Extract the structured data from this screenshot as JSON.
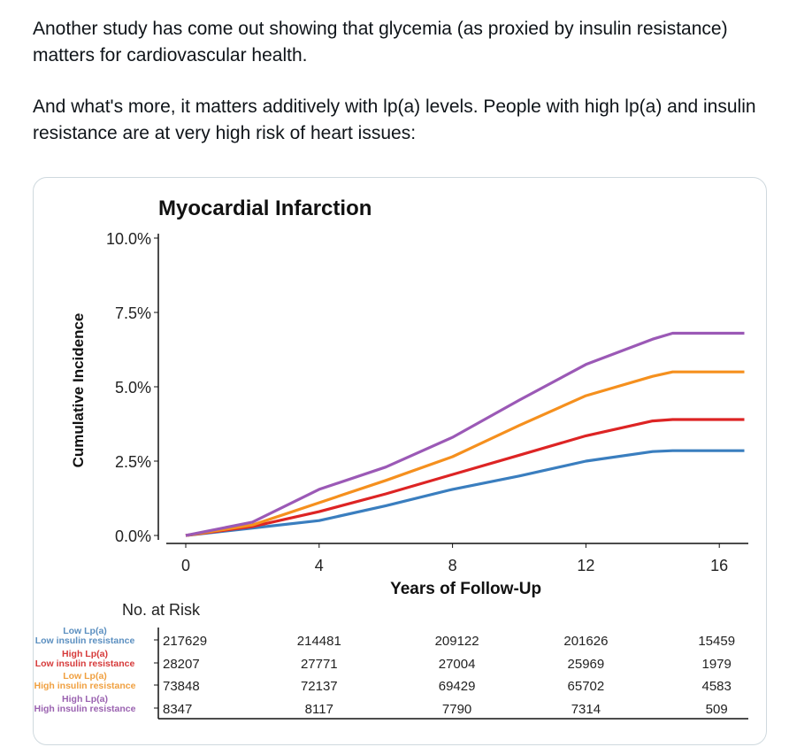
{
  "post": {
    "paragraphs": [
      "Another study has come out showing that glycemia (as proxied by insulin resistance) matters for cardiovascular health.",
      "And what's more, it matters additively with lp(a) levels. People with high lp(a) and insulin resistance are at very high risk of heart issues:"
    ]
  },
  "chart_data": {
    "type": "line",
    "title": "Myocardial Infarction",
    "xlabel": "Years of Follow-Up",
    "ylabel": "Cumulative Incidence",
    "xlim": [
      0,
      16.8
    ],
    "ylim": [
      0,
      10
    ],
    "xticks": [
      "0",
      "4",
      "8",
      "12",
      "16"
    ],
    "xtick_values": [
      0,
      4,
      8,
      12,
      16
    ],
    "yticks": [
      "0.0%",
      "2.5%",
      "5.0%",
      "7.5%",
      "10.0%"
    ],
    "ytick_values": [
      0,
      2.5,
      5,
      7.5,
      10
    ],
    "grid": false,
    "series": [
      {
        "name": "Low Lp(a) Low insulin resistance",
        "color": "#3a7ebf",
        "x": [
          0,
          2,
          4,
          6,
          8,
          10,
          12,
          14,
          14.6,
          16.75
        ],
        "y": [
          0,
          0.25,
          0.5,
          1.0,
          1.55,
          2.0,
          2.5,
          2.82,
          2.85,
          2.85
        ]
      },
      {
        "name": "High Lp(a) Low insulin resistance",
        "color": "#dd2424",
        "x": [
          0,
          2,
          4,
          6,
          8,
          10,
          12,
          14,
          14.6,
          16.75
        ],
        "y": [
          0,
          0.3,
          0.8,
          1.4,
          2.05,
          2.7,
          3.35,
          3.85,
          3.9,
          3.9
        ]
      },
      {
        "name": "Low Lp(a) High insulin resistance",
        "color": "#f5901e",
        "x": [
          0,
          2,
          4,
          6,
          8,
          10,
          12,
          14,
          14.6,
          16.75
        ],
        "y": [
          0,
          0.35,
          1.1,
          1.85,
          2.65,
          3.7,
          4.7,
          5.35,
          5.5,
          5.5
        ]
      },
      {
        "name": "High Lp(a) High insulin resistance",
        "color": "#9b59b6",
        "x": [
          0,
          2,
          4,
          6,
          8,
          10,
          12,
          14,
          14.6,
          16.75
        ],
        "y": [
          0,
          0.45,
          1.55,
          2.3,
          3.3,
          4.55,
          5.75,
          6.6,
          6.8,
          6.8
        ]
      }
    ],
    "risk_table": {
      "title": "No. at Risk",
      "rows": [
        {
          "line1": "Low Lp(a)",
          "line2": "Low insulin resistance",
          "color": "#5b8fc0",
          "values": [
            "217629",
            "214481",
            "209122",
            "201626",
            "15459"
          ]
        },
        {
          "line1": "High Lp(a)",
          "line2": "Low insulin resistance",
          "color": "#d63a3a",
          "values": [
            "28207",
            "27771",
            "27004",
            "25969",
            "1979"
          ]
        },
        {
          "line1": "Low Lp(a)",
          "line2": "High insulin resistance",
          "color": "#f0a040",
          "values": [
            "73848",
            "72137",
            "69429",
            "65702",
            "4583"
          ]
        },
        {
          "line1": "High Lp(a)",
          "line2": "High insulin resistance",
          "color": "#9a62b0",
          "values": [
            "8347",
            "8117",
            "7790",
            "7314",
            "509"
          ]
        }
      ]
    }
  }
}
